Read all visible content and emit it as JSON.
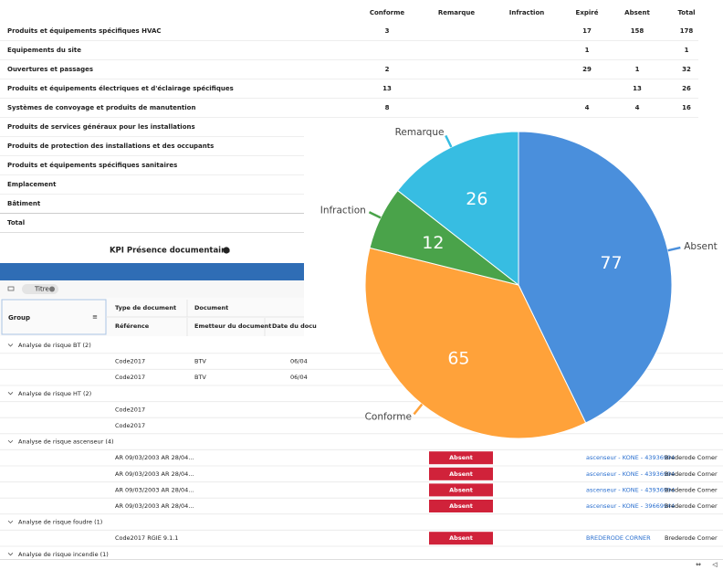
{
  "table": {
    "columns": [
      "Conforme",
      "Remarque",
      "Infraction",
      "Expiré",
      "Absent",
      "Total"
    ],
    "rows": [
      {
        "label": "Produits et équipements spécifiques HVAC",
        "cells": [
          3,
          null,
          null,
          17,
          158,
          178
        ]
      },
      {
        "label": "Equipements du site",
        "cells": [
          null,
          null,
          null,
          1,
          null,
          1
        ]
      },
      {
        "label": "Ouvertures et passages",
        "cells": [
          2,
          null,
          null,
          29,
          1,
          32
        ]
      },
      {
        "label": "Produits et équipements électriques et d'éclairage spécifiques",
        "cells": [
          13,
          null,
          null,
          null,
          13,
          26
        ]
      },
      {
        "label": "Systèmes de convoyage et produits de manutention",
        "cells": [
          8,
          null,
          null,
          4,
          4,
          16
        ]
      },
      {
        "label": "Produits de services généraux pour les installations",
        "cells": []
      },
      {
        "label": "Produits de protection des installations et des occupants",
        "cells": []
      },
      {
        "label": "Produits et équipements spécifiques sanitaires",
        "cells": []
      },
      {
        "label": "Emplacement",
        "cells": []
      },
      {
        "label": "Bâtiment",
        "cells": []
      }
    ],
    "total_label": "Total"
  },
  "chart_data": {
    "type": "pie",
    "categories": [
      "Absent",
      "Conforme",
      "Infraction",
      "Remarque"
    ],
    "values": [
      77,
      65,
      12,
      26
    ],
    "colors": [
      "#4a8fdc",
      "#ffa23a",
      "#4aa34a",
      "#37bde2"
    ]
  },
  "panel": {
    "title": "KPI Présence documentaire",
    "filter_chip": "Titre",
    "group_header": "Group",
    "headers": [
      "Type de document",
      "Document"
    ],
    "subheaders": [
      "Référence",
      "Emetteur du document",
      "Date du docu"
    ],
    "groups": [
      {
        "label": "Analyse de risque BT (2)",
        "rows": [
          {
            "ref": "Code2017",
            "emetteur": "BTV",
            "date": "06/04"
          },
          {
            "ref": "Code2017",
            "emetteur": "BTV",
            "date": "06/04"
          }
        ]
      },
      {
        "label": "Analyse de risque HT (2)",
        "rows": [
          {
            "ref": "Code2017"
          },
          {
            "ref": "Code2017"
          }
        ]
      },
      {
        "label": "Analyse de risque ascenseur (4)",
        "rows": [
          {
            "ref": "AR 09/03/2003 AR 28/04...",
            "status": "Absent",
            "link": "ascenseur - KONE - 43936994",
            "site": "Brederode Corner"
          },
          {
            "ref": "AR 09/03/2003 AR 28/04...",
            "status": "Absent",
            "link": "ascenseur - KONE - 43936994",
            "site": "Brederode Corner"
          },
          {
            "ref": "AR 09/03/2003 AR 28/04...",
            "status": "Absent",
            "link": "ascenseur - KONE - 43936994",
            "site": "Brederode Corner"
          },
          {
            "ref": "AR 09/03/2003 AR 28/04...",
            "status": "Absent",
            "link": "ascenseur - KONE - 39669944",
            "site": "Brederode Corner"
          }
        ]
      },
      {
        "label": "Analyse de risque foudre (1)",
        "rows": [
          {
            "ref": "Code2017 RGIE 9.1.1",
            "status": "Absent",
            "link": "BREDERODE CORNER",
            "site": "Brederode Corner"
          }
        ]
      },
      {
        "label": "Analyse de risque incendie (1)",
        "rows": []
      }
    ]
  }
}
